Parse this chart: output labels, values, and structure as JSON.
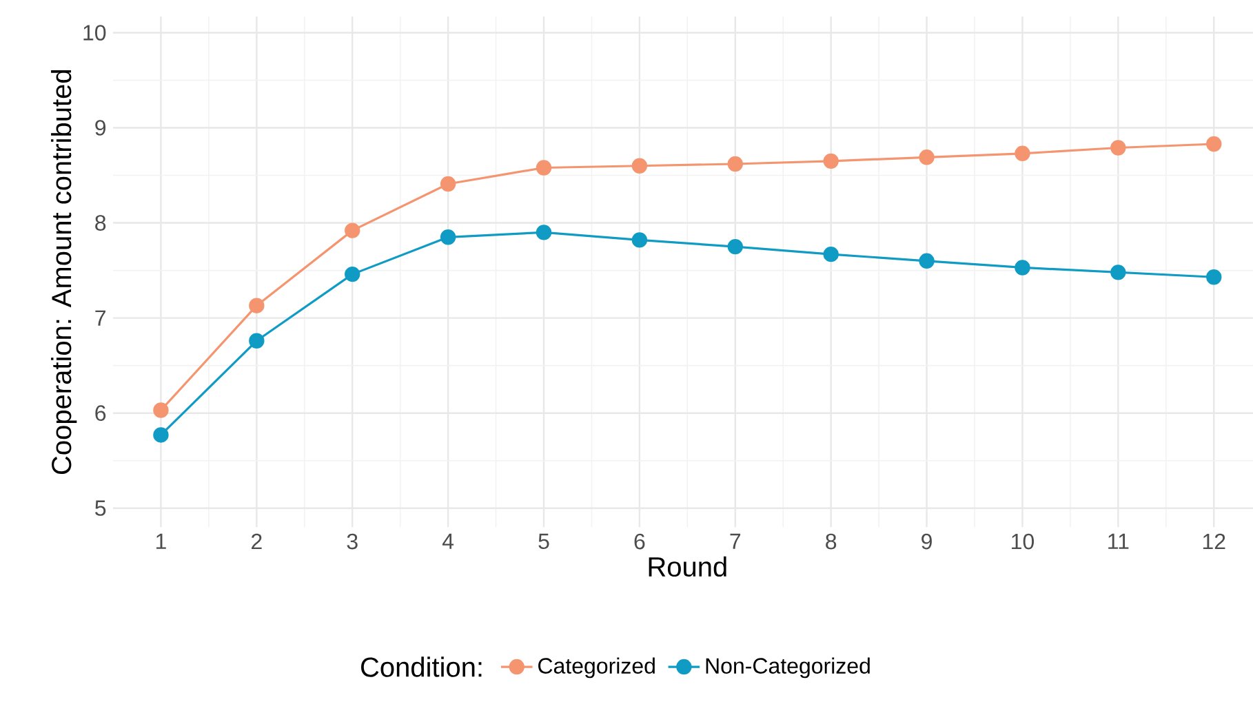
{
  "chart_data": {
    "type": "line",
    "xlabel": "Round",
    "ylabel": "Cooperation: Amount contributed",
    "legend_title": "Condition:",
    "x": [
      1,
      2,
      3,
      4,
      5,
      6,
      7,
      8,
      9,
      10,
      11,
      12
    ],
    "series": [
      {
        "name": "Categorized",
        "color": "#f4956f",
        "values": [
          6.03,
          7.13,
          7.92,
          8.41,
          8.58,
          8.6,
          8.62,
          8.65,
          8.69,
          8.73,
          8.79,
          8.83
        ]
      },
      {
        "name": "Non-Categorized",
        "color": "#0f9bc4",
        "values": [
          5.77,
          6.76,
          7.46,
          7.85,
          7.9,
          7.82,
          7.75,
          7.67,
          7.6,
          7.53,
          7.48,
          7.43
        ]
      }
    ],
    "xlim": [
      0.5,
      12.5
    ],
    "ylim": [
      4.8,
      10.17
    ],
    "xticks": [
      1,
      2,
      3,
      4,
      5,
      6,
      7,
      8,
      9,
      10,
      11,
      12
    ],
    "yticks": [
      5,
      6,
      7,
      8,
      9,
      10
    ],
    "grid": true,
    "legend": "bottom",
    "marker": "circle",
    "line_style": "solid"
  }
}
